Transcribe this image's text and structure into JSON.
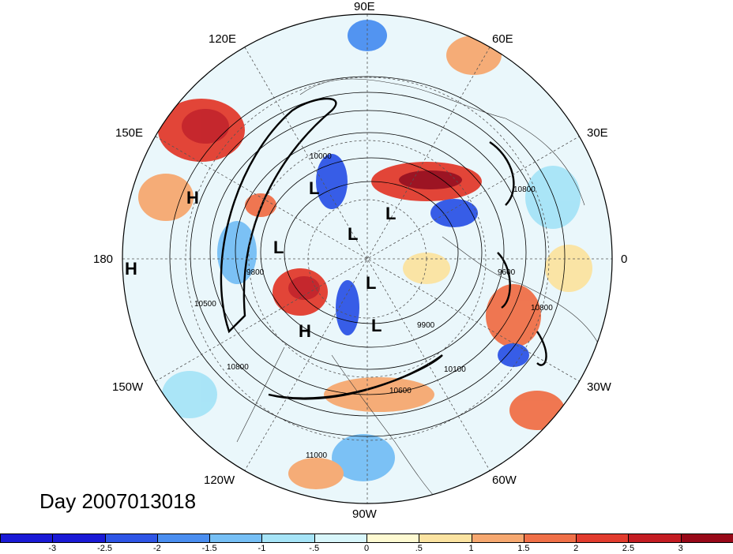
{
  "map": {
    "type": "polar-stereographic",
    "hemisphere": "north",
    "longitude_labels": [
      {
        "text": "90E"
      },
      {
        "text": "60E"
      },
      {
        "text": "30E"
      },
      {
        "text": "0"
      },
      {
        "text": "30W"
      },
      {
        "text": "60W"
      },
      {
        "text": "90W"
      },
      {
        "text": "120W"
      },
      {
        "text": "150W"
      },
      {
        "text": "180"
      },
      {
        "text": "150E"
      },
      {
        "text": "120E"
      }
    ],
    "pressure_centers": [
      {
        "text": "H"
      },
      {
        "text": "H"
      },
      {
        "text": "L"
      },
      {
        "text": "L"
      },
      {
        "text": "L"
      },
      {
        "text": "L"
      },
      {
        "text": "L"
      },
      {
        "text": "H"
      },
      {
        "text": "L"
      }
    ],
    "contour_labels": [
      {
        "text": "10000"
      },
      {
        "text": "9800"
      },
      {
        "text": "10800"
      },
      {
        "text": "10500"
      },
      {
        "text": "10800"
      },
      {
        "text": "10800"
      },
      {
        "text": "11000"
      },
      {
        "text": "10600"
      },
      {
        "text": "9900"
      },
      {
        "text": "10100"
      },
      {
        "text": "9600"
      }
    ]
  },
  "title": "Day 2007013018",
  "colorbar": {
    "colors": [
      "#1a1ad6",
      "#2e55e6",
      "#4a8ef0",
      "#76bff5",
      "#a6e4f7",
      "#d8f6fb",
      "#fefad2",
      "#fbe3a1",
      "#f6a870",
      "#f07048",
      "#e23c2e",
      "#c41c22",
      "#980818"
    ],
    "ticks": [
      "-3",
      "-2.5",
      "-2",
      "-1.5",
      "-1",
      "-.5",
      "0",
      ".5",
      "1",
      "1.5",
      "2",
      "2.5",
      "3"
    ]
  }
}
